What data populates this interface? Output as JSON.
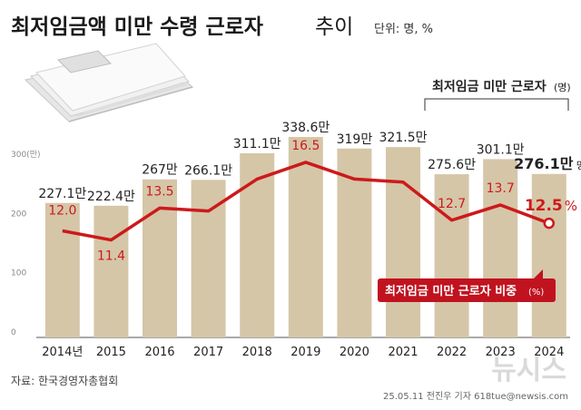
{
  "header": {
    "title_bold": "최저임금액 미만 수령 근로자",
    "title_light": "추이",
    "unit": "단위: 명, %"
  },
  "legend_bar": {
    "label": "최저임금 미만 근로자",
    "unit": "(명)"
  },
  "legend_line": {
    "label": "최저임금 미만 근로자 비중",
    "unit": "(%)"
  },
  "source": "자료: 한국경영자총협회",
  "credit": "25.05.11 전진우 기자 618tue@newsis.com",
  "watermark": "뉴시스",
  "colors": {
    "bar": "#d5c6a8",
    "line": "#cc1a1a",
    "bar_text": "#222222",
    "line_text": "#cc1a1a",
    "legend_box": "#c0131f"
  },
  "icons": [
    "money-envelope-icon"
  ],
  "chart_data": {
    "type": "bar",
    "categories": [
      "2014년",
      "2015",
      "2016",
      "2017",
      "2018",
      "2019",
      "2020",
      "2021",
      "2022",
      "2023",
      "2024"
    ],
    "series": [
      {
        "name": "최저임금 미만 근로자",
        "type": "bar",
        "unit": "만 명",
        "values": [
          227.1,
          222.4,
          267,
          266.1,
          311.1,
          338.6,
          319,
          321.5,
          275.6,
          301.1,
          276.1
        ],
        "labels": [
          "227.1만",
          "222.4만",
          "267만",
          "266.1만",
          "311.1만",
          "338.6만",
          "319만",
          "321.5만",
          "275.6만",
          "301.1만",
          "276.1만"
        ],
        "last_label_suffix": "명"
      },
      {
        "name": "최저임금 미만 근로자 비중",
        "type": "line",
        "unit": "%",
        "values": [
          12.0,
          11.4,
          13.5,
          null,
          null,
          16.5,
          null,
          null,
          12.7,
          13.7,
          12.5
        ],
        "labels": [
          "12.0",
          "11.4",
          "13.5",
          "",
          "",
          "16.5",
          "",
          "",
          "12.7",
          "13.7",
          "12.5"
        ],
        "last_label_suffix": "%"
      }
    ],
    "y_ticks": [
      "0",
      "100",
      "200",
      "300(만)"
    ],
    "y_tick_values": [
      0,
      100,
      200,
      300
    ],
    "ylim": [
      0,
      360
    ],
    "grid": false,
    "legend": "top-right"
  }
}
